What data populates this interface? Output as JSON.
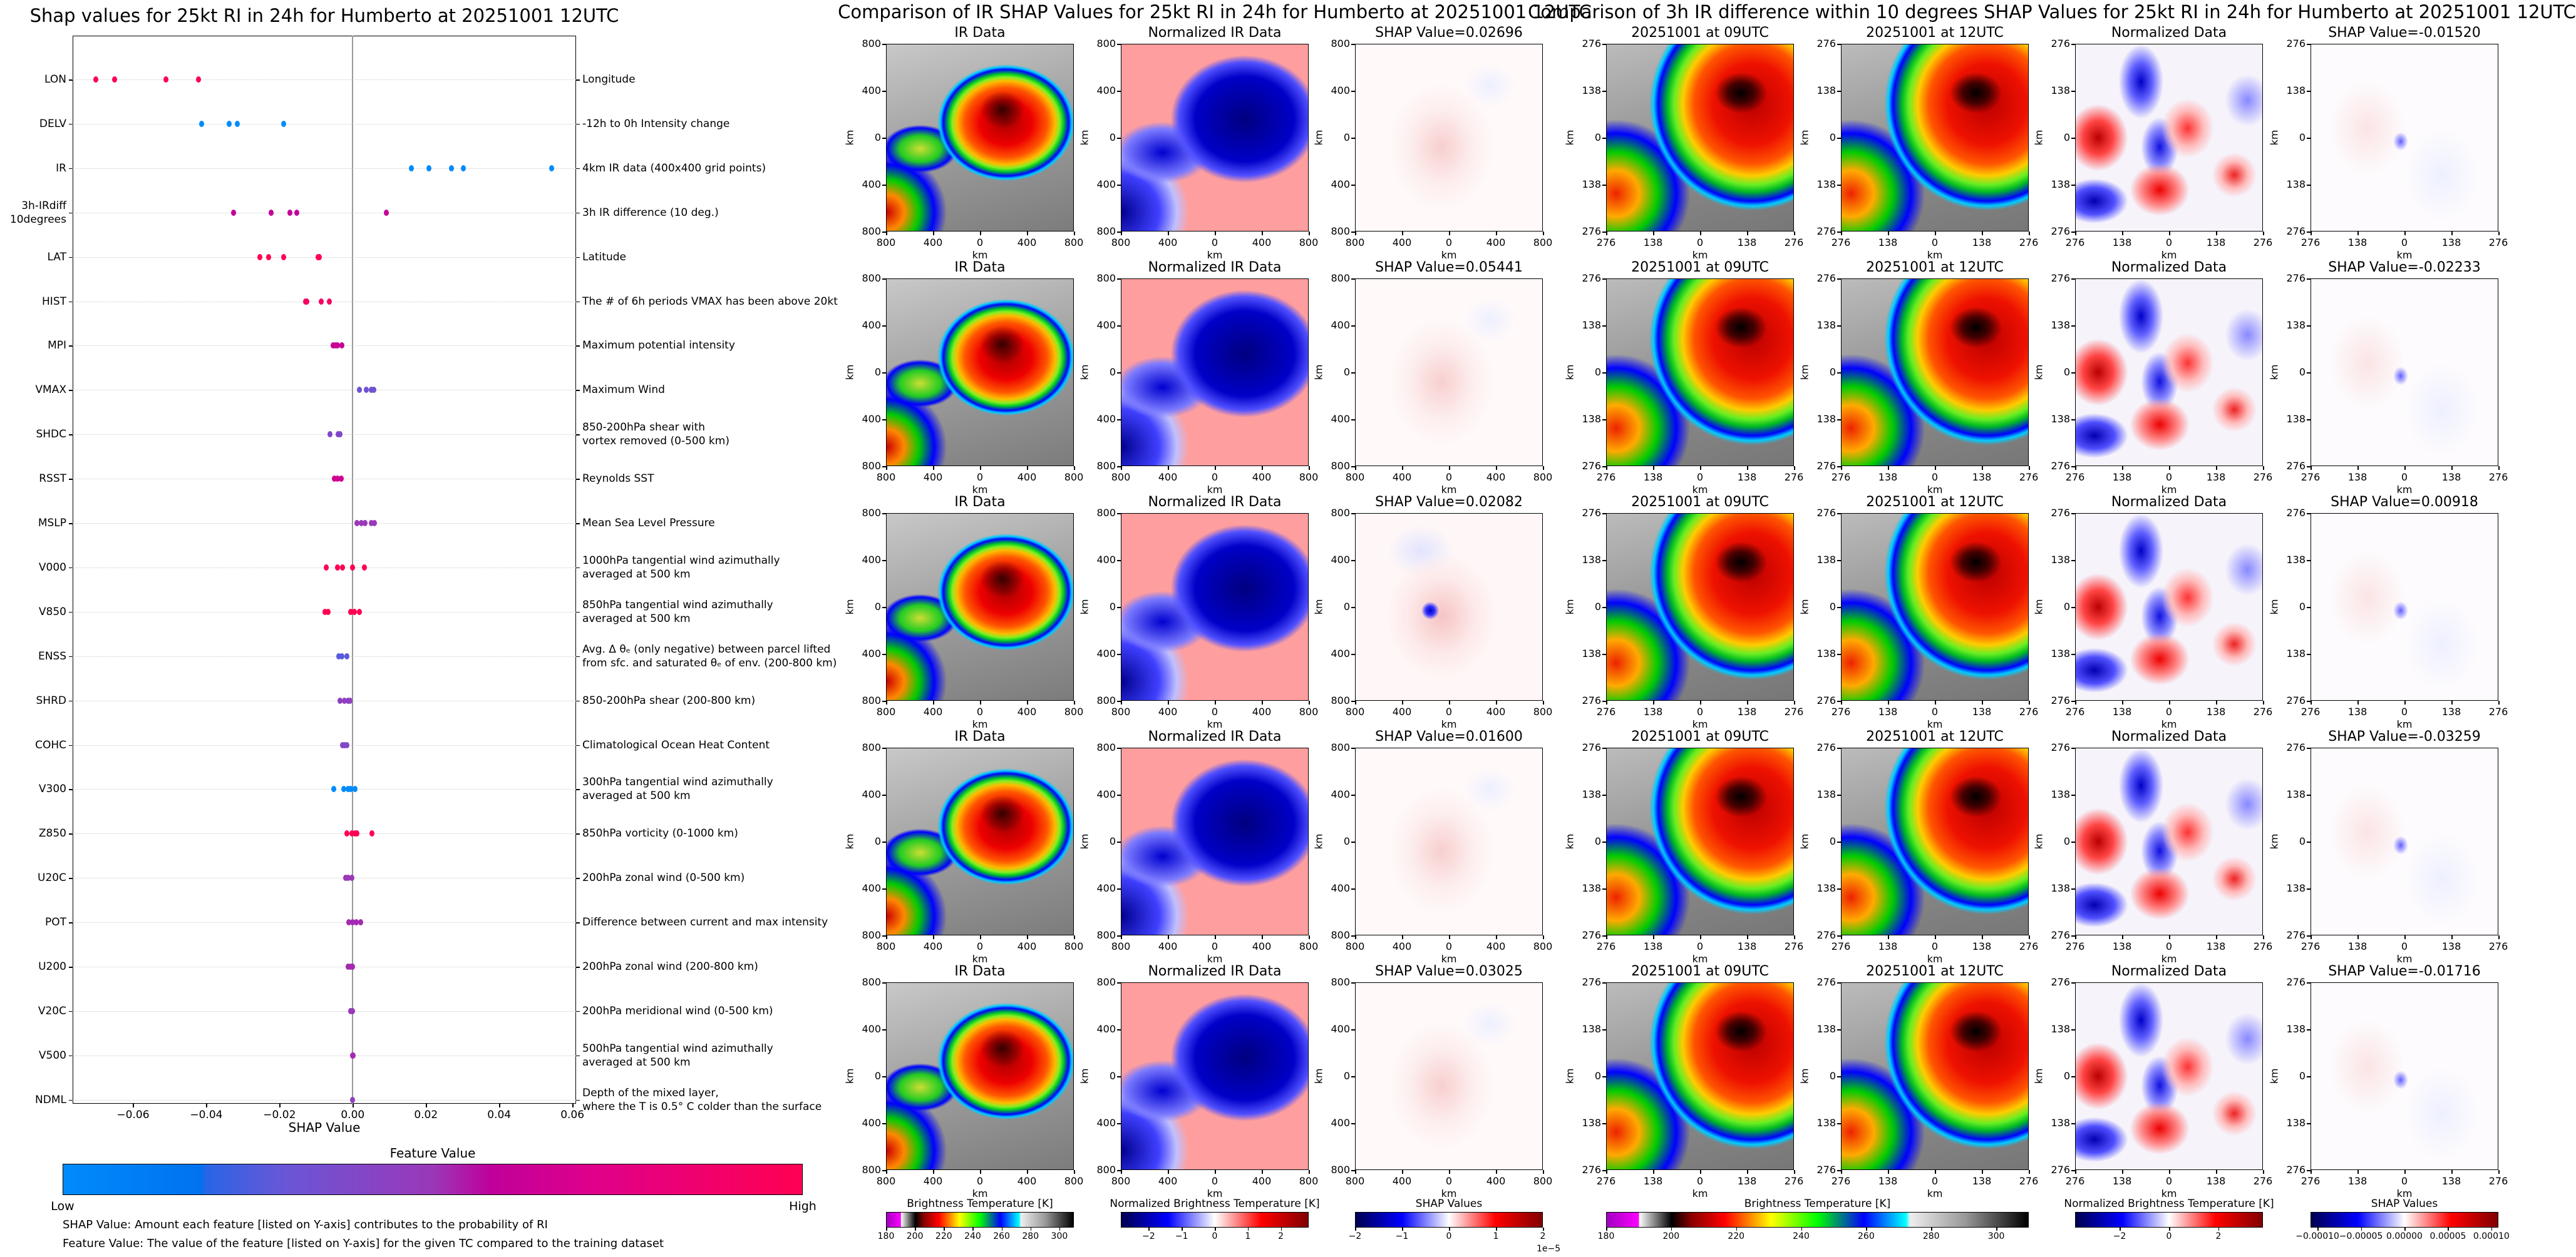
{
  "left_chart": {
    "title": "Shap values for 25kt RI in 24h for Humberto at 20251001 12UTC",
    "xlabel": "SHAP Value",
    "xticks": [
      "−0.06",
      "−0.04",
      "−0.02",
      "0.00",
      "0.02",
      "0.04",
      "0.06"
    ],
    "xtick_values": [
      -0.06,
      -0.04,
      -0.02,
      0,
      0.02,
      0.04,
      0.06
    ],
    "colorbar": {
      "title": "Feature Value",
      "low": "Low",
      "high": "High"
    },
    "notes": [
      "SHAP Value: Amount each feature [listed on Y-axis] contributes to the probability of RI",
      "Feature Value: The value of the feature [listed on Y-axis] for the given TC compared to the training dataset"
    ]
  },
  "chart_data": [
    {
      "type": "scatter",
      "title": "Shap values for 25kt RI in 24h for Humberto at 20251001 12UTC",
      "xlabel": "SHAP Value",
      "ylabel": "",
      "xlim": [
        -0.0765,
        0.061
      ],
      "grid": "dotted horizontal",
      "color_legend": "bottom",
      "features": [
        {
          "code": "LON",
          "desc": [
            "Longitude"
          ],
          "feature_value": 1.0,
          "shap": [
            -0.0702,
            -0.0651,
            -0.051,
            -0.0421
          ]
        },
        {
          "code": "DELV",
          "desc": [
            "-12h to 0h Intensity change"
          ],
          "feature_value": 0.0,
          "shap": [
            -0.0413,
            -0.0338,
            -0.0316,
            -0.0188
          ]
        },
        {
          "code": "IR",
          "desc": [
            "4km IR data (400x400 grid points)"
          ],
          "feature_value": 0.0,
          "shap": [
            0.016,
            0.02082,
            0.02696,
            0.03025,
            0.05441
          ]
        },
        {
          "code": "3h-IRdiff\n10degrees",
          "desc": [
            "3h IR difference (10 deg.)"
          ],
          "feature_value": 0.6,
          "shap": [
            -0.03259,
            -0.02233,
            -0.01716,
            -0.0152,
            0.00918
          ]
        },
        {
          "code": "LAT",
          "desc": [
            "Latitude"
          ],
          "feature_value": 1.0,
          "shap": [
            -0.0253,
            -0.023,
            -0.0188,
            -0.0095,
            -0.0091
          ]
        },
        {
          "code": "HIST",
          "desc": [
            "The # of 6h periods VMAX has been above 20kt"
          ],
          "feature_value": 0.92,
          "shap": [
            -0.0129,
            -0.0125,
            -0.0086,
            -0.0064
          ]
        },
        {
          "code": "MPI",
          "desc": [
            "Maximum potential intensity"
          ],
          "feature_value": 0.62,
          "shap": [
            -0.0054,
            -0.0047,
            -0.0041,
            -0.0029
          ]
        },
        {
          "code": "VMAX",
          "desc": [
            "Maximum Wind"
          ],
          "feature_value": 0.32,
          "shap": [
            0.0019,
            0.0037,
            0.005,
            0.0057
          ]
        },
        {
          "code": "SHDC",
          "desc": [
            "850-200hPa shear with",
            "vortex removed (0-500 km)"
          ],
          "feature_value": 0.4,
          "shap": [
            -0.0062,
            -0.004,
            -0.0034
          ]
        },
        {
          "code": "RSST",
          "desc": [
            "Reynolds SST"
          ],
          "feature_value": 0.65,
          "shap": [
            -0.005,
            -0.0041,
            -0.0032
          ]
        },
        {
          "code": "MSLP",
          "desc": [
            "Mean Sea Level Pressure"
          ],
          "feature_value": 0.5,
          "shap": [
            0.0012,
            0.0023,
            0.0034,
            0.005,
            0.006
          ]
        },
        {
          "code": "V000",
          "desc": [
            "1000hPa tangential wind azimuthally",
            "averaged at 500 km"
          ],
          "feature_value": 1.0,
          "shap": [
            -0.0073,
            -0.0041,
            -0.0028,
            0.0,
            0.0032
          ]
        },
        {
          "code": "V850",
          "desc": [
            "850hPa tangential wind azimuthally",
            "averaged at 500 km"
          ],
          "feature_value": 1.0,
          "shap": [
            -0.0075,
            -0.0067,
            -0.0006,
            0.0004,
            0.0019
          ]
        },
        {
          "code": "ENSS",
          "desc": [
            "Avg. Δ θₑ (only negative) between parcel lifted",
            "from sfc. and saturated θₑ of env. (200-800 km)"
          ],
          "feature_value": 0.28,
          "shap": [
            -0.0038,
            -0.0029,
            -0.0016
          ]
        },
        {
          "code": "SHRD",
          "desc": [
            "850-200hPa shear (200-800 km)"
          ],
          "feature_value": 0.45,
          "shap": [
            -0.0034,
            -0.0023,
            -0.0012,
            -0.0007
          ]
        },
        {
          "code": "COHC",
          "desc": [
            "Climatological Ocean Heat Content"
          ],
          "feature_value": 0.4,
          "shap": [
            -0.0028,
            -0.0022,
            -0.0016
          ]
        },
        {
          "code": "V300",
          "desc": [
            "300hPa tangential wind azimuthally",
            "averaged at 500 km"
          ],
          "feature_value": 0.0,
          "shap": [
            -0.0051,
            -0.0025,
            -0.0012,
            -0.0006,
            0.0007
          ]
        },
        {
          "code": "Z850",
          "desc": [
            "850hPa vorticity (0-1000 km)"
          ],
          "feature_value": 1.0,
          "shap": [
            -0.0016,
            -0.0003,
            0.0006,
            0.0012,
            0.0053
          ]
        },
        {
          "code": "U20C",
          "desc": [
            "200hPa zonal wind (0-500 km)"
          ],
          "feature_value": 0.5,
          "shap": [
            -0.0019,
            -0.0013,
            -0.0003
          ]
        },
        {
          "code": "POT",
          "desc": [
            "Difference between current and max intensity"
          ],
          "feature_value": 0.52,
          "shap": [
            -0.001,
            0.0,
            0.001,
            0.0022
          ]
        },
        {
          "code": "U200",
          "desc": [
            "200hPa zonal wind (200-800 km)"
          ],
          "feature_value": 0.52,
          "shap": [
            -0.0012,
            -0.0006,
            -0.0001
          ]
        },
        {
          "code": "V20C",
          "desc": [
            "200hPa meridional wind (0-500 km)"
          ],
          "feature_value": 0.5,
          "shap": [
            -0.0006,
            0.0
          ]
        },
        {
          "code": "V500",
          "desc": [
            "500hPa tangential wind azimuthally",
            "averaged at 500 km"
          ],
          "feature_value": 0.52,
          "shap": [
            0.0,
            0.0001
          ]
        },
        {
          "code": "NDML",
          "desc": [
            "Depth of the mixed layer,",
            "where the T is 0.5° C colder than the surface"
          ],
          "feature_value": 0.45,
          "shap": [
            0.0
          ]
        }
      ]
    },
    {
      "type": "heatmap",
      "title": "Comparison of IR SHAP Values for 25kt RI in 24h for Humberto at 20251001 12UTC",
      "axis_ticks": [
        "800",
        "400",
        "0",
        "400",
        "800"
      ],
      "axis_label": "km",
      "columns": [
        "IR Data",
        "Normalized IR Data",
        "SHAP Value="
      ],
      "shap_values": [
        "0.02696",
        "0.05441",
        "0.02082",
        "0.01600",
        "0.03025"
      ],
      "colorbars": [
        {
          "title": "Brightness Temperature [K]",
          "range": [
            180,
            310
          ],
          "ticks": [
            "180",
            "200",
            "220",
            "240",
            "260",
            "280",
            "300"
          ],
          "tick_values": [
            180,
            200,
            220,
            240,
            260,
            280,
            300
          ],
          "cmap": "bt"
        },
        {
          "title": "Normalized Brightness Temperature [K]",
          "range": [
            -2.84,
            2.84
          ],
          "ticks": [
            "−2",
            "−1",
            "0",
            "1",
            "2"
          ],
          "tick_values": [
            -2,
            -1,
            0,
            1,
            2
          ],
          "cmap": "sw"
        },
        {
          "title": "SHAP Values",
          "range": [
            -2,
            2
          ],
          "ticks": [
            "−2",
            "−1",
            "0",
            "1",
            "2"
          ],
          "tick_values": [
            -2,
            -1,
            0,
            1,
            2
          ],
          "cmap": "sw",
          "offset": "1e−5"
        }
      ]
    },
    {
      "type": "heatmap",
      "title": "Comparison of 3h IR difference within 10 degrees SHAP Values for 25kt RI in 24h for Humberto at 20251001 12UTC",
      "axis_ticks": [
        "276",
        "138",
        "0",
        "138",
        "276"
      ],
      "axis_label": "km",
      "columns": [
        "20251001 at 09UTC",
        "20251001 at 12UTC",
        "Normalized Data",
        "SHAP Value="
      ],
      "shap_values": [
        "-0.01520",
        "-0.02233",
        "0.00918",
        "-0.03259",
        "-0.01716"
      ],
      "colorbars": [
        {
          "title": "Brightness Temperature [K]",
          "range": [
            180,
            310
          ],
          "ticks": [
            "180",
            "200",
            "220",
            "240",
            "260",
            "280",
            "300"
          ],
          "tick_values": [
            180,
            200,
            220,
            240,
            260,
            280,
            300
          ],
          "cmap": "bt"
        },
        {
          "title": "Normalized Brightness Temperature [K]",
          "range": [
            -3.8,
            3.8
          ],
          "ticks": [
            "−2",
            "0",
            "2"
          ],
          "tick_values": [
            -2,
            0,
            2
          ],
          "cmap": "sw"
        },
        {
          "title": "SHAP Values",
          "range": [
            -0.000108,
            0.000108
          ],
          "ticks": [
            "−0.00010",
            "−0.00005",
            "0.00000",
            "0.00005",
            "0.00010"
          ],
          "tick_values": [
            -0.0001,
            -5e-05,
            0,
            5e-05,
            0.0001
          ],
          "cmap": "sw"
        }
      ]
    }
  ],
  "colors": {
    "low": "#008bfb",
    "high": "#ff0052",
    "zero_line": "#999999"
  }
}
